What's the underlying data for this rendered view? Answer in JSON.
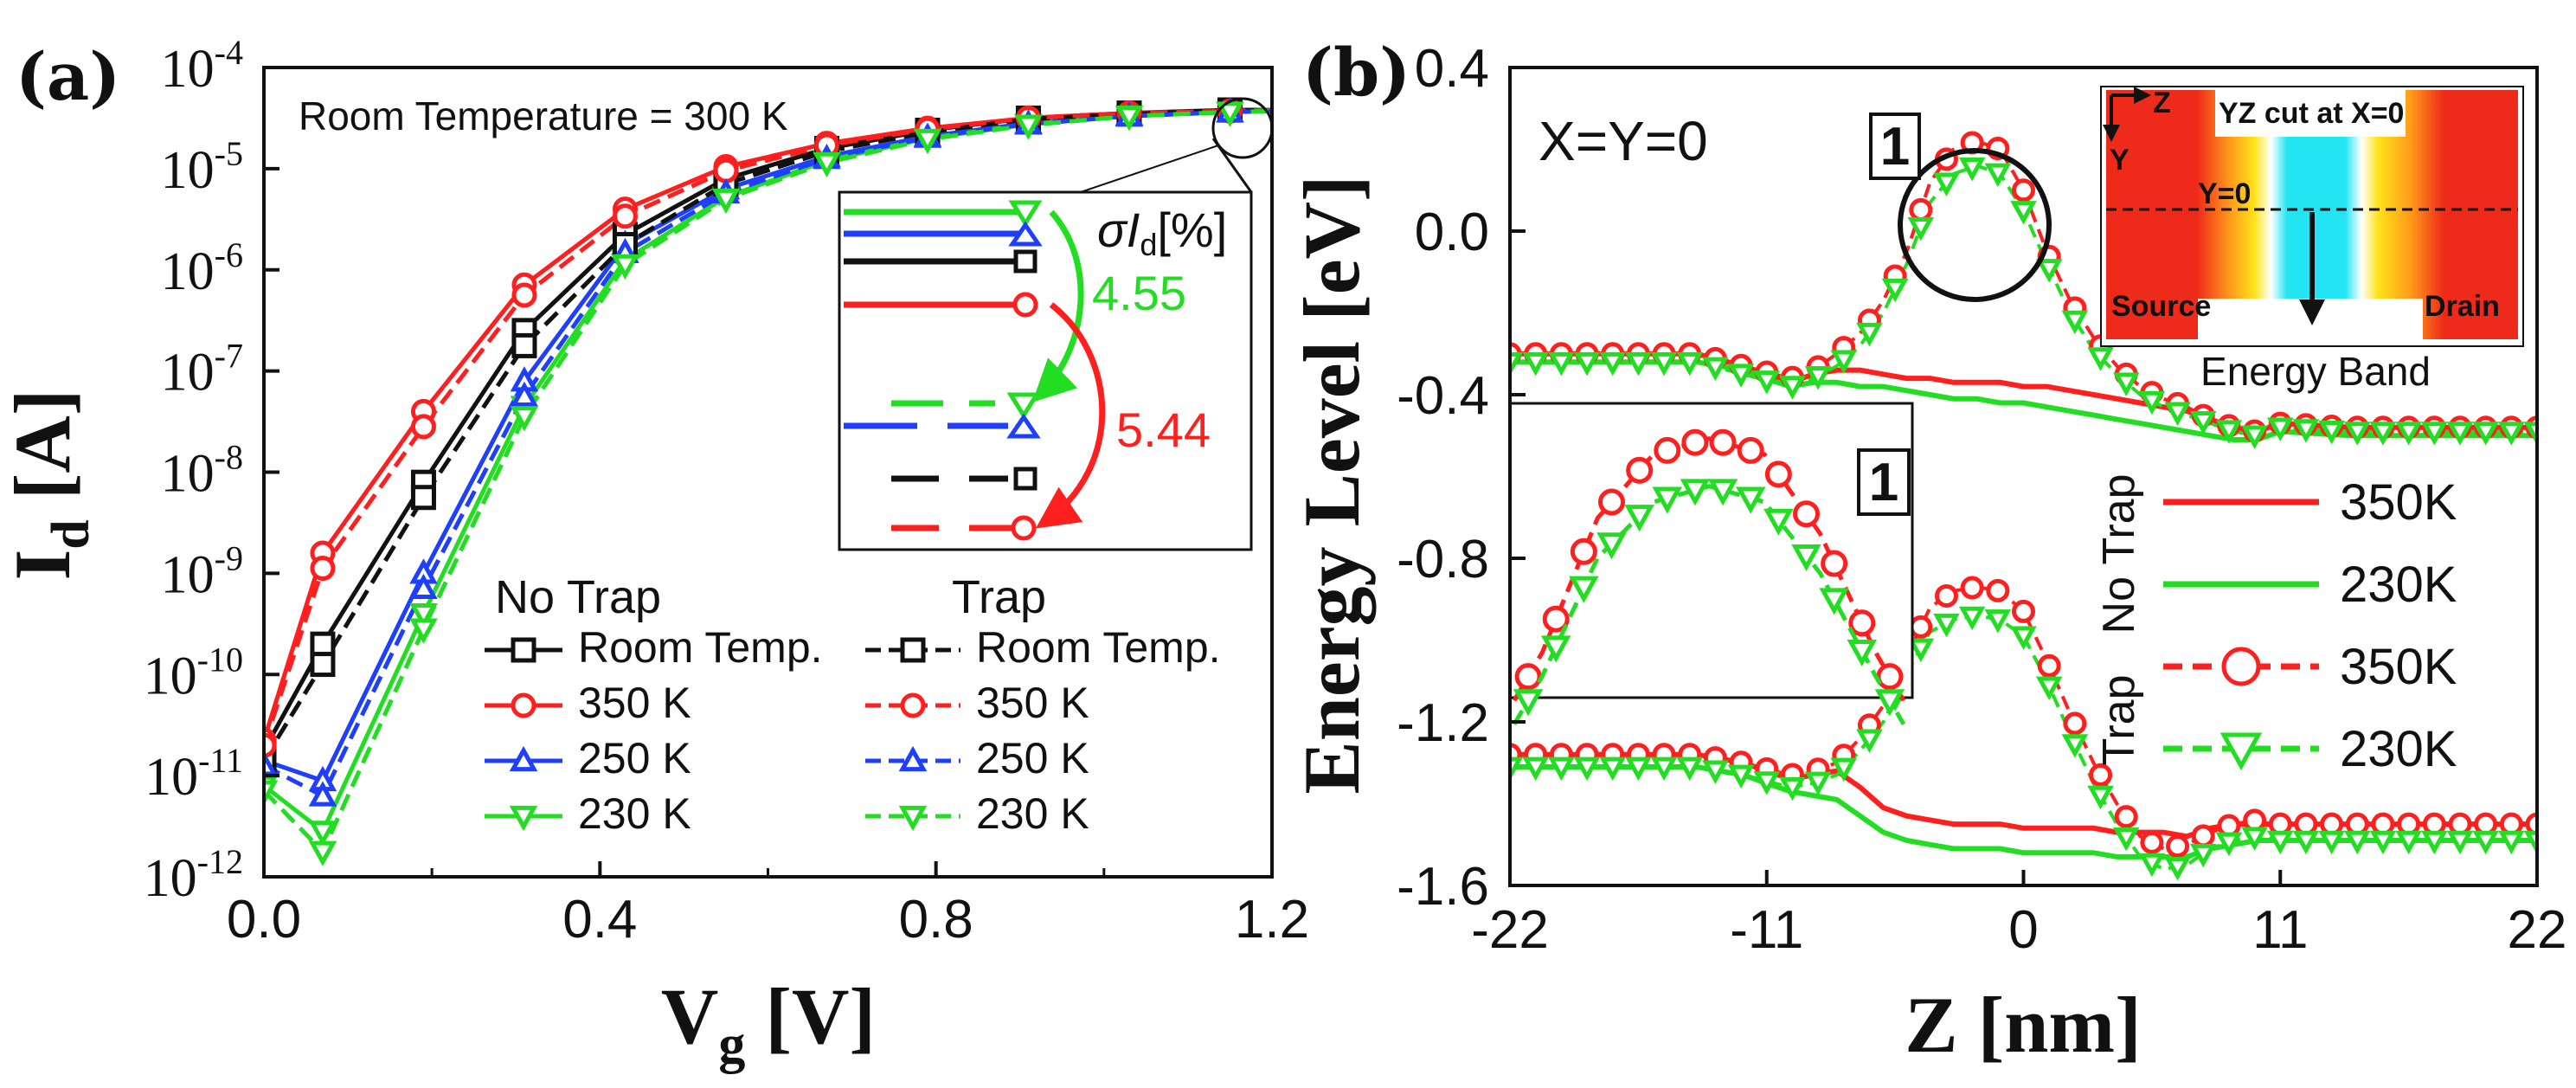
{
  "chart_data": [
    {
      "id": "a",
      "panel_label": "(a)",
      "type": "line",
      "yscale": "log",
      "xlabel_main": "V",
      "xlabel_sub": "g",
      "xlabel_unit": " [V]",
      "ylabel_main": "I",
      "ylabel_sub": "d",
      "ylabel_unit": " [A]",
      "xlim": [
        0.0,
        1.2
      ],
      "ylim_exp": [
        -12,
        -4
      ],
      "xticks": [
        "0.0",
        "0.4",
        "0.8",
        "1.2"
      ],
      "yticks": [
        {
          "base": "10",
          "exp": "-4"
        },
        {
          "base": "10",
          "exp": "-5"
        },
        {
          "base": "10",
          "exp": "-6"
        },
        {
          "base": "10",
          "exp": "-7"
        },
        {
          "base": "10",
          "exp": "-8"
        },
        {
          "base": "10",
          "exp": "-9"
        },
        {
          "base": "10",
          "exp": "-10"
        },
        {
          "base": "10",
          "exp": "-11"
        },
        {
          "base": "10",
          "exp": "-12"
        }
      ],
      "annotation": "Room Temperature = 300 K",
      "x": [
        0.0,
        0.07,
        0.19,
        0.31,
        0.43,
        0.55,
        0.67,
        0.79,
        0.91,
        1.03,
        1.15,
        1.2
      ],
      "series": [
        {
          "name": "Room Temp.",
          "group": "No Trap",
          "color": "#111111",
          "dash": "solid",
          "marker": "square",
          "log10": [
            -10.75,
            -9.7,
            -8.1,
            -6.6,
            -5.65,
            -5.1,
            -4.8,
            -4.62,
            -4.5,
            -4.45,
            -4.42,
            -4.42
          ]
        },
        {
          "name": "350 K",
          "group": "No Trap",
          "color": "#ff1f1f",
          "dash": "solid",
          "marker": "circle",
          "log10": [
            -10.65,
            -8.8,
            -7.4,
            -6.15,
            -5.4,
            -4.98,
            -4.75,
            -4.6,
            -4.5,
            -4.45,
            -4.43,
            -4.42
          ]
        },
        {
          "name": "250 K",
          "group": "No Trap",
          "color": "#1f3fff",
          "dash": "solid",
          "marker": "triangle-up",
          "log10": [
            -10.85,
            -11.05,
            -9.0,
            -7.1,
            -5.75,
            -5.2,
            -4.88,
            -4.68,
            -4.55,
            -4.47,
            -4.44,
            -4.43
          ]
        },
        {
          "name": "230 K",
          "group": "No Trap",
          "color": "#22dd22",
          "dash": "solid",
          "marker": "triangle-down",
          "log10": [
            -11.1,
            -11.55,
            -9.4,
            -7.35,
            -5.9,
            -5.28,
            -4.92,
            -4.7,
            -4.56,
            -4.48,
            -4.44,
            -4.43
          ]
        },
        {
          "name": "Room Temp.",
          "group": "Trap",
          "color": "#111111",
          "dash": "dashed",
          "marker": "square",
          "log10": [
            -10.85,
            -9.9,
            -8.25,
            -6.75,
            -5.75,
            -5.15,
            -4.83,
            -4.64,
            -4.51,
            -4.46,
            -4.42,
            -4.42
          ]
        },
        {
          "name": "350 K",
          "group": "Trap",
          "color": "#ff1f1f",
          "dash": "dashed",
          "marker": "circle",
          "log10": [
            -10.7,
            -8.95,
            -7.55,
            -6.25,
            -5.47,
            -5.02,
            -4.77,
            -4.61,
            -4.5,
            -4.45,
            -4.43,
            -4.42
          ]
        },
        {
          "name": "250 K",
          "group": "Trap",
          "color": "#1f3fff",
          "dash": "dashed",
          "marker": "triangle-up",
          "log10": [
            -10.9,
            -11.2,
            -9.15,
            -7.25,
            -5.83,
            -5.24,
            -4.9,
            -4.69,
            -4.56,
            -4.48,
            -4.44,
            -4.43
          ]
        },
        {
          "name": "230 K",
          "group": "Trap",
          "color": "#22dd22",
          "dash": "dashed",
          "marker": "triangle-down",
          "log10": [
            -11.15,
            -11.75,
            -9.55,
            -7.45,
            -5.95,
            -5.3,
            -4.94,
            -4.71,
            -4.57,
            -4.48,
            -4.44,
            -4.43
          ]
        }
      ],
      "legend": {
        "head_left": "No Trap",
        "head_right": "Trap",
        "location": "lower-right"
      },
      "inset": {
        "title_sigma": "σI",
        "title_sub": "d",
        "title_unit": "[%]",
        "values": [
          {
            "text": "4.55",
            "color": "#22dd22"
          },
          {
            "text": "5.44",
            "color": "#ff1f1f"
          }
        ]
      }
    },
    {
      "id": "b",
      "panel_label": "(b)",
      "type": "line",
      "xlabel": "Z [nm]",
      "ylabel": "Energy Level [eV]",
      "xlim": [
        -22,
        22
      ],
      "ylim": [
        -1.6,
        0.4
      ],
      "xticks": [
        "-22",
        "-11",
        "0",
        "11",
        "22"
      ],
      "yticks": [
        "0.4",
        "0.0",
        "-0.4",
        "-0.8",
        "-1.2",
        "-1.6"
      ],
      "annotation": "X=Y=0",
      "callout": "1",
      "inset_cut": {
        "axis_z": "Z",
        "axis_y": "Y",
        "title": "YZ cut at X=0",
        "line_label": "Y=0",
        "source": "Source",
        "drain": "Drain",
        "caption": "Energy Band"
      },
      "x": [
        -22,
        -18,
        -14,
        -12,
        -10,
        -9,
        -8,
        -7,
        -6,
        -5,
        -4,
        -3,
        -2,
        -1,
        0,
        1,
        2,
        3,
        4,
        5,
        6,
        7,
        8,
        9,
        10,
        11,
        14,
        18,
        22
      ],
      "series": [
        {
          "name": "350K",
          "group": "No Trap",
          "band": "conduction",
          "color": "#ff1f1f",
          "dash": "solid",
          "marker": "none",
          "values": [
            -0.3,
            -0.3,
            -0.3,
            -0.33,
            -0.37,
            -0.35,
            -0.34,
            -0.34,
            -0.35,
            -0.36,
            -0.36,
            -0.37,
            -0.37,
            -0.37,
            -0.38,
            -0.38,
            -0.39,
            -0.4,
            -0.41,
            -0.42,
            -0.43,
            -0.44,
            -0.46,
            -0.48,
            -0.49,
            -0.47,
            -0.48,
            -0.48,
            -0.48
          ]
        },
        {
          "name": "230K",
          "group": "No Trap",
          "band": "conduction",
          "color": "#22dd22",
          "dash": "solid",
          "marker": "none",
          "values": [
            -0.32,
            -0.32,
            -0.32,
            -0.34,
            -0.38,
            -0.37,
            -0.37,
            -0.38,
            -0.38,
            -0.39,
            -0.4,
            -0.41,
            -0.41,
            -0.42,
            -0.42,
            -0.43,
            -0.44,
            -0.45,
            -0.46,
            -0.47,
            -0.48,
            -0.49,
            -0.5,
            -0.51,
            -0.51,
            -0.49,
            -0.5,
            -0.5,
            -0.5
          ]
        },
        {
          "name": "350K",
          "group": "Trap",
          "band": "conduction",
          "color": "#ff1f1f",
          "dash": "dashed",
          "marker": "circle",
          "values": [
            -0.3,
            -0.3,
            -0.3,
            -0.33,
            -0.36,
            -0.34,
            -0.3,
            -0.25,
            -0.17,
            -0.05,
            0.12,
            0.2,
            0.22,
            0.2,
            0.1,
            -0.05,
            -0.17,
            -0.26,
            -0.33,
            -0.38,
            -0.41,
            -0.43,
            -0.46,
            -0.48,
            -0.49,
            -0.47,
            -0.48,
            -0.48,
            -0.48
          ]
        },
        {
          "name": "230K",
          "group": "Trap",
          "band": "conduction",
          "color": "#22dd22",
          "dash": "dashed",
          "marker": "triangle-down",
          "values": [
            -0.32,
            -0.32,
            -0.32,
            -0.35,
            -0.38,
            -0.36,
            -0.33,
            -0.28,
            -0.2,
            -0.08,
            0.07,
            0.14,
            0.16,
            0.14,
            0.05,
            -0.08,
            -0.2,
            -0.29,
            -0.35,
            -0.4,
            -0.43,
            -0.45,
            -0.47,
            -0.49,
            -0.5,
            -0.48,
            -0.49,
            -0.49,
            -0.49
          ]
        },
        {
          "name": "350K",
          "group": "No Trap",
          "band": "valence",
          "color": "#ff1f1f",
          "dash": "solid",
          "marker": "none",
          "values": [
            -1.28,
            -1.28,
            -1.28,
            -1.3,
            -1.34,
            -1.33,
            -1.32,
            -1.36,
            -1.41,
            -1.43,
            -1.44,
            -1.45,
            -1.45,
            -1.45,
            -1.46,
            -1.46,
            -1.46,
            -1.46,
            -1.47,
            -1.47,
            -1.47,
            -1.48,
            -1.46,
            -1.45,
            -1.45,
            -1.45,
            -1.45,
            -1.45,
            -1.45
          ]
        },
        {
          "name": "230K",
          "group": "No Trap",
          "band": "valence",
          "color": "#22dd22",
          "dash": "solid",
          "marker": "none",
          "values": [
            -1.31,
            -1.31,
            -1.31,
            -1.33,
            -1.37,
            -1.38,
            -1.39,
            -1.43,
            -1.47,
            -1.49,
            -1.5,
            -1.51,
            -1.51,
            -1.51,
            -1.52,
            -1.52,
            -1.52,
            -1.52,
            -1.53,
            -1.53,
            -1.53,
            -1.53,
            -1.51,
            -1.5,
            -1.49,
            -1.49,
            -1.49,
            -1.49,
            -1.49
          ]
        },
        {
          "name": "350K",
          "group": "Trap",
          "band": "valence",
          "color": "#ff1f1f",
          "dash": "dashed",
          "marker": "circle",
          "values": [
            -1.28,
            -1.28,
            -1.28,
            -1.3,
            -1.33,
            -1.32,
            -1.3,
            -1.24,
            -1.16,
            -1.04,
            -0.92,
            -0.88,
            -0.87,
            -0.88,
            -0.93,
            -1.05,
            -1.18,
            -1.3,
            -1.4,
            -1.48,
            -1.51,
            -1.5,
            -1.47,
            -1.45,
            -1.44,
            -1.45,
            -1.45,
            -1.45,
            -1.45
          ]
        },
        {
          "name": "230K",
          "group": "Trap",
          "band": "valence",
          "color": "#22dd22",
          "dash": "dashed",
          "marker": "triangle-down",
          "values": [
            -1.31,
            -1.31,
            -1.31,
            -1.33,
            -1.36,
            -1.35,
            -1.33,
            -1.27,
            -1.2,
            -1.08,
            -0.98,
            -0.95,
            -0.94,
            -0.95,
            -0.99,
            -1.1,
            -1.23,
            -1.35,
            -1.45,
            -1.53,
            -1.56,
            -1.55,
            -1.51,
            -1.49,
            -1.48,
            -1.49,
            -1.49,
            -1.49,
            -1.49
          ]
        }
      ],
      "legend": {
        "group_no_trap": "No Trap",
        "group_trap": "Trap",
        "location": "right"
      }
    }
  ]
}
